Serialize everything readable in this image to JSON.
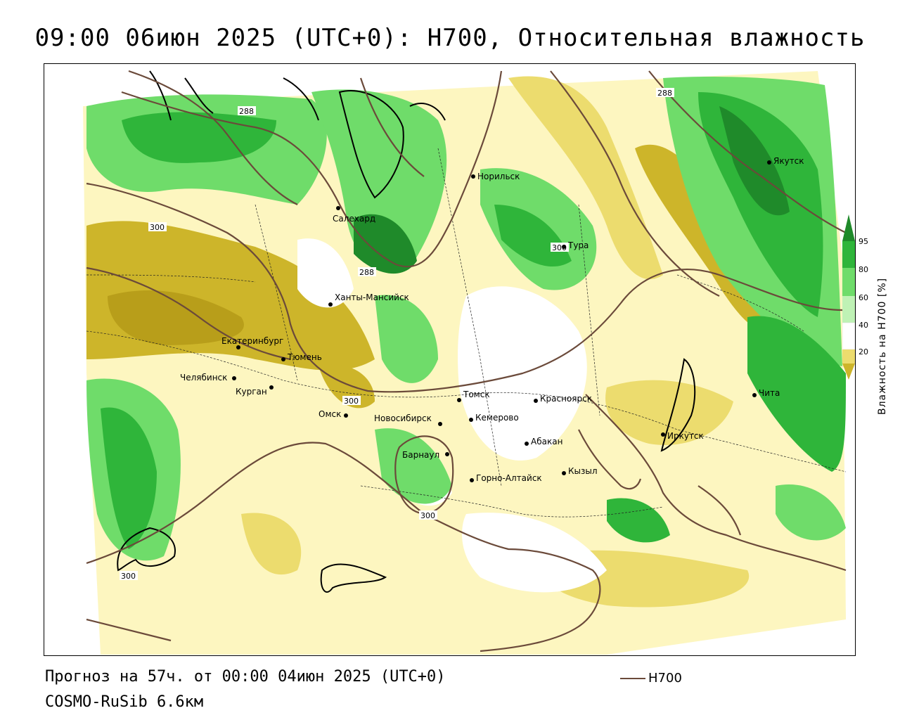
{
  "title": "09:00 06июн 2025 (UTC+0): H700, Относительная влажность",
  "footer": {
    "forecast": "Прогноз на 57ч. от 00:00 04июн 2025 (UTC+0)",
    "model": "COSMO-RuSib 6.6км"
  },
  "line_legend": {
    "label": "H700",
    "color": "#6b4a3a"
  },
  "color_legend": {
    "title": "Влажность на H700 [%]",
    "ticks": [
      "95",
      "80",
      "60",
      "40",
      "20"
    ],
    "colors": {
      "gt95": "#1f8a2a",
      "r80_95": "#2fb53a",
      "r60_80": "#6fdc6a",
      "r50_60": "#bff2b5",
      "r40_50": "#ffffff",
      "r30_40": "#fdf6c0",
      "r20_30": "#ecdc6e",
      "lt20": "#cdb52a"
    }
  },
  "cities": [
    "Салехард",
    "Норильск",
    "Якутск",
    "Тура",
    "Ханты-Мансийск",
    "Екатеринбург",
    "Тюмень",
    "Челябинск",
    "Курган",
    "Омск",
    "Томск",
    "Красноярск",
    "Новосибирск",
    "Кемерово",
    "Абакан",
    "Барнаул",
    "Горно-Алтайск",
    "Кызыл",
    "Иркутск",
    "Чита"
  ],
  "isoline_labels": [
    "288",
    "288",
    "300",
    "288",
    "300",
    "300",
    "300",
    "300"
  ]
}
